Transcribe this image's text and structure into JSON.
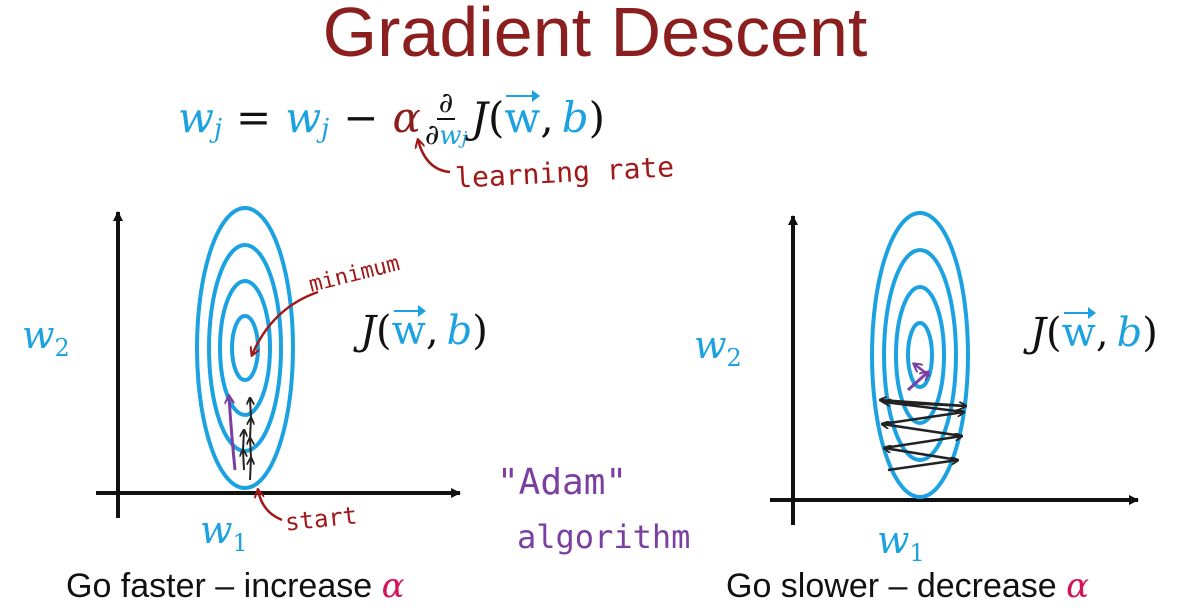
{
  "title": "Gradient Descent",
  "equation": {
    "lhs_var": "w",
    "lhs_sub": "j",
    "equals": "=",
    "rhs_var": "w",
    "rhs_sub": "j",
    "minus": "−",
    "alpha": "α",
    "partial_num": "∂",
    "partial_den": "∂",
    "partial_den_var": "w",
    "partial_den_sub": "j",
    "J": "J",
    "open": "(",
    "w_vec": "w",
    "comma": ",",
    "b": "b",
    "close": ")"
  },
  "annotations": {
    "learning_rate": "learning rate",
    "minimum": "minimum",
    "start": "start",
    "adam_line1": "\"Adam\"",
    "adam_line2": "algorithm"
  },
  "left_plot": {
    "y_label_var": "w",
    "y_label_sub": "2",
    "x_label_var": "w",
    "x_label_sub": "1",
    "cost_J": "J",
    "cost_open": "(",
    "cost_w": "w",
    "cost_comma": ",",
    "cost_b": "b",
    "cost_close": ")",
    "caption_text": "Go faster – increase ",
    "caption_alpha": "α"
  },
  "right_plot": {
    "y_label_var": "w",
    "y_label_sub": "2",
    "x_label_var": "w",
    "x_label_sub": "1",
    "cost_J": "J",
    "cost_open": "(",
    "cost_w": "w",
    "cost_comma": ",",
    "cost_b": "b",
    "cost_close": ")",
    "caption_text": "Go slower – decrease ",
    "caption_alpha": "α"
  },
  "colors": {
    "title": "#8b1e1e",
    "blue": "#1ca2e0",
    "red_annotation": "#a01818",
    "purple": "#7a3fa0",
    "alpha_pink": "#d4145a",
    "axis": "#111111"
  }
}
